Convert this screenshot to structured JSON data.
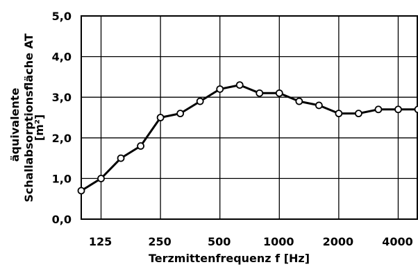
{
  "chart_data": {
    "type": "line",
    "xlabel": "Terzmittenfrequenz f [Hz]",
    "ylabel": [
      "äquivalente",
      "Schallabsorptionsfläche AT",
      "[m²]"
    ],
    "ylim": [
      0,
      5
    ],
    "y_ticks": [
      "0,0",
      "1,0",
      "2,0",
      "3,0",
      "4,0",
      "5,0"
    ],
    "x_scale": "log (third-octave bands)",
    "x_tick_labels": [
      "125",
      "250",
      "500",
      "1000",
      "2000",
      "4000"
    ],
    "grid": true,
    "x": [
      100,
      125,
      160,
      200,
      250,
      315,
      400,
      500,
      630,
      800,
      1000,
      1250,
      1600,
      2000,
      2500,
      3150,
      4000,
      5000
    ],
    "series": [
      {
        "values": [
          0.7,
          1.0,
          1.5,
          1.8,
          2.5,
          2.6,
          2.9,
          3.2,
          3.3,
          3.1,
          3.1,
          2.9,
          2.8,
          2.6,
          2.6,
          2.7,
          2.7,
          2.7
        ]
      }
    ]
  }
}
